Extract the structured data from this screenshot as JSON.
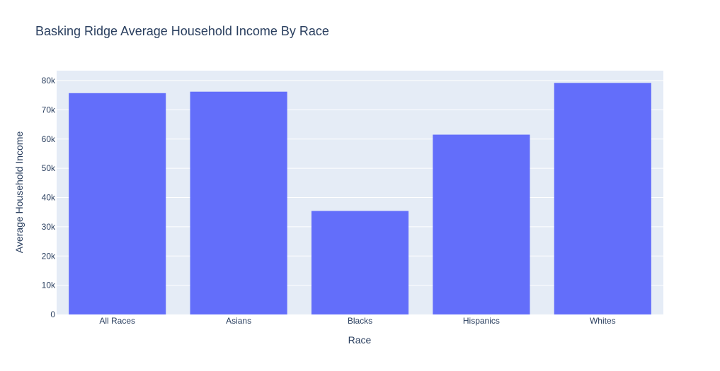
{
  "chart_data": {
    "type": "bar",
    "title": "Basking Ridge Average Household Income By Race",
    "xlabel": "Race",
    "ylabel": "Average Household Income",
    "categories": [
      "All Races",
      "Asians",
      "Blacks",
      "Hispanics",
      "Whites"
    ],
    "values": [
      75700,
      76200,
      35400,
      61500,
      79200
    ],
    "ylim": [
      0,
      80000
    ],
    "yticks": [
      0,
      10000,
      20000,
      30000,
      40000,
      50000,
      60000,
      70000,
      80000
    ],
    "ytick_labels": [
      "0",
      "10k",
      "20k",
      "30k",
      "40k",
      "50k",
      "60k",
      "70k",
      "80k"
    ],
    "grid": true,
    "bar_color": "#636efa",
    "plot_background": "#e5ecf6"
  }
}
